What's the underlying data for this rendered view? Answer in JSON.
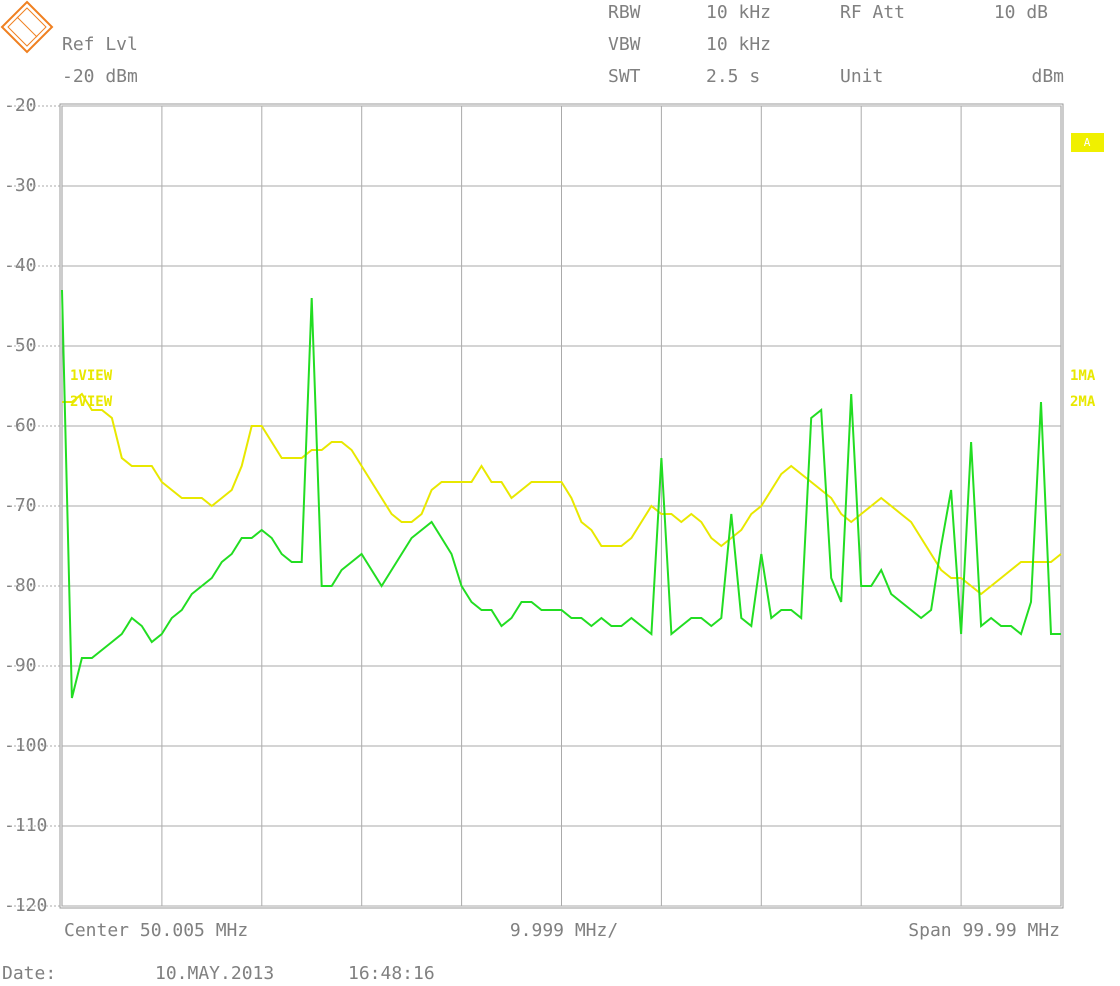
{
  "chart_data": {
    "type": "line",
    "header": {
      "ref_label": "Ref Lvl",
      "ref_value": "-20 dBm",
      "rbw_label": "RBW",
      "rbw_value": "10 kHz",
      "vbw_label": "VBW",
      "vbw_value": "10 kHz",
      "swt_label": "SWT",
      "swt_value": "2.5 s",
      "att_label": "RF Att",
      "att_value": "10 dB",
      "unit_label": "Unit",
      "unit_value": "dBm"
    },
    "trace_labels": [
      "1MA",
      "2MA"
    ],
    "marker_box": "A",
    "footer": {
      "center": "Center 50.005 MHz",
      "div": "9.999 MHz/",
      "span": "Span 99.99 MHz",
      "date_label": "Date:",
      "date": "10.MAY.2013",
      "time": "16:48:16"
    },
    "xlim": [
      0.01,
      100
    ],
    "ylim": [
      -120,
      -20
    ],
    "yticks": [
      -20,
      -30,
      -40,
      -50,
      -60,
      -70,
      -80,
      -90,
      -100,
      -110,
      -120
    ],
    "grid": true,
    "x": [
      0.01,
      1,
      2,
      3,
      4,
      5,
      6,
      7,
      8,
      9,
      10,
      11,
      12,
      13,
      14,
      15,
      16,
      17,
      18,
      19,
      20,
      21,
      22,
      23,
      24,
      25,
      26,
      27,
      28,
      29,
      30,
      31,
      32,
      33,
      34,
      35,
      36,
      37,
      38,
      39,
      40,
      41,
      42,
      43,
      44,
      45,
      46,
      47,
      48,
      49,
      50,
      51,
      52,
      53,
      54,
      55,
      56,
      57,
      58,
      59,
      60,
      61,
      62,
      63,
      64,
      65,
      66,
      67,
      68,
      69,
      70,
      71,
      72,
      73,
      74,
      75,
      76,
      77,
      78,
      79,
      80,
      81,
      82,
      83,
      84,
      85,
      86,
      87,
      88,
      89,
      90,
      91,
      92,
      93,
      94,
      95,
      96,
      97,
      98,
      99,
      100
    ],
    "series": [
      {
        "name": "1VIEW",
        "color": "#e8e800",
        "values": [
          -57,
          -57,
          -56,
          -58,
          -58,
          -59,
          -64,
          -65,
          -65,
          -65,
          -67,
          -68,
          -69,
          -69,
          -69,
          -70,
          -69,
          -68,
          -65,
          -60,
          -60,
          -62,
          -64,
          -64,
          -64,
          -63,
          -63,
          -62,
          -62,
          -63,
          -65,
          -67,
          -69,
          -71,
          -72,
          -72,
          -71,
          -68,
          -67,
          -67,
          -67,
          -67,
          -65,
          -67,
          -67,
          -69,
          -68,
          -67,
          -67,
          -67,
          -67,
          -69,
          -72,
          -73,
          -75,
          -75,
          -75,
          -74,
          -72,
          -70,
          -71,
          -71,
          -72,
          -71,
          -72,
          -74,
          -75,
          -74,
          -73,
          -71,
          -70,
          -68,
          -66,
          -65,
          -66,
          -67,
          -68,
          -69,
          -71,
          -72,
          -71,
          -70,
          -69,
          -70,
          -71,
          -72,
          -74,
          -76,
          -78,
          -79,
          -79,
          -80,
          -81,
          -80,
          -79,
          -78,
          -77,
          -77,
          -77,
          -77,
          -76
        ]
      },
      {
        "name": "2VIEW",
        "color": "#22dd22",
        "values": [
          -43,
          -94,
          -89,
          -89,
          -88,
          -87,
          -86,
          -84,
          -85,
          -87,
          -86,
          -84,
          -83,
          -81,
          -80,
          -79,
          -77,
          -76,
          -74,
          -74,
          -73,
          -74,
          -76,
          -77,
          -77,
          -44,
          -80,
          -80,
          -78,
          -77,
          -76,
          -78,
          -80,
          -78,
          -76,
          -74,
          -73,
          -72,
          -74,
          -76,
          -80,
          -82,
          -83,
          -83,
          -85,
          -84,
          -82,
          -82,
          -83,
          -83,
          -83,
          -84,
          -84,
          -85,
          -84,
          -85,
          -85,
          -84,
          -85,
          -86,
          -64,
          -86,
          -85,
          -84,
          -84,
          -85,
          -84,
          -71,
          -84,
          -85,
          -76,
          -84,
          -83,
          -83,
          -84,
          -59,
          -58,
          -79,
          -82,
          -56,
          -80,
          -80,
          -78,
          -81,
          -82,
          -83,
          -84,
          -83,
          -75,
          -68,
          -86,
          -62,
          -85,
          -84,
          -85,
          -85,
          -86,
          -82,
          -57,
          -86,
          -86
        ]
      }
    ]
  }
}
